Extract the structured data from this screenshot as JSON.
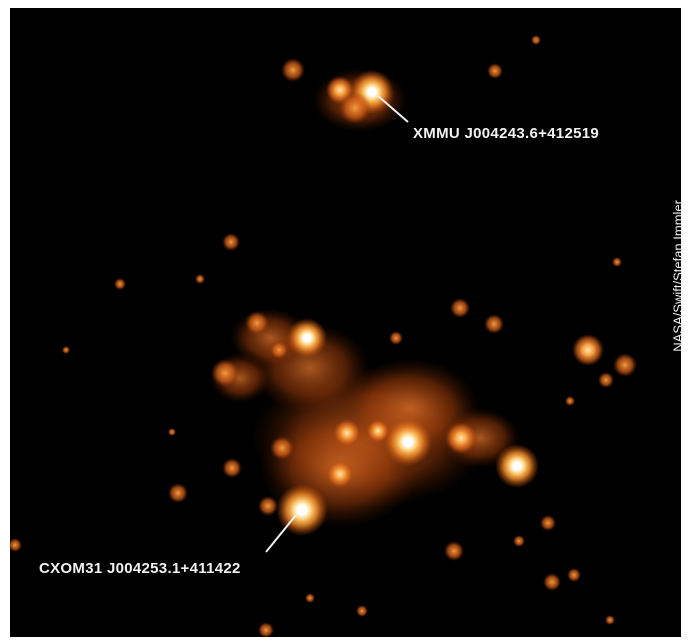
{
  "image": {
    "background_color": "#000000",
    "glow_colors": {
      "core": "#ffffff",
      "mid": "#ffb84a",
      "outer": "#e06010"
    }
  },
  "annotations": {
    "upper_source": "XMMU J004243.6+412519",
    "lower_source": "CXOM31 J004253.1+411422"
  },
  "credit": "NASA/Swift/Stefan Immler"
}
